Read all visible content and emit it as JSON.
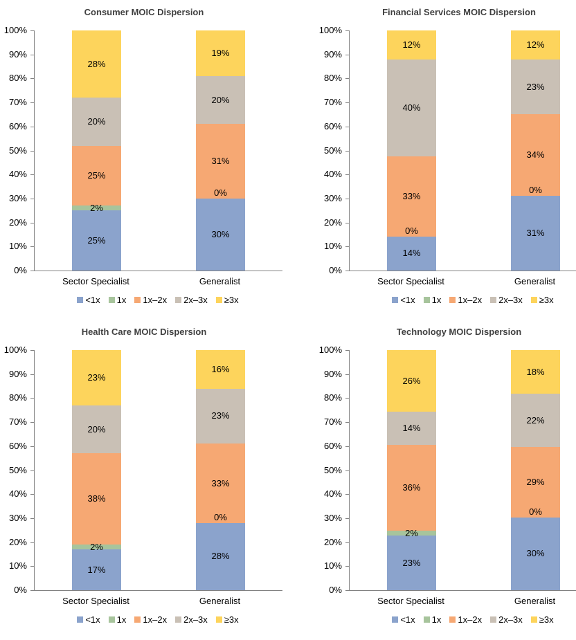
{
  "y_axis": {
    "ticks": [
      "100%",
      "90%",
      "80%",
      "70%",
      "60%",
      "50%",
      "40%",
      "30%",
      "20%",
      "10%",
      "0%"
    ],
    "range": [
      0,
      100
    ],
    "step": 10
  },
  "legend": {
    "position": "bottom",
    "entries": [
      {
        "label": "<1x",
        "color": "#8BA3CC"
      },
      {
        "label": "1x",
        "color": "#A7C49C"
      },
      {
        "label": "1x–2x",
        "color": "#F6A873"
      },
      {
        "label": "2x–3x",
        "color": "#C9C0B5"
      },
      {
        "label": "≥3x",
        "color": "#FDD45C"
      }
    ]
  },
  "chart_data": [
    {
      "type": "bar",
      "stacked": true,
      "grid": false,
      "title": "Consumer MOIC Dispersion",
      "categories": [
        "Sector Specialist",
        "Generalist"
      ],
      "ylim": [
        0,
        100
      ],
      "series": [
        {
          "name": "<1x",
          "values": [
            25,
            30
          ]
        },
        {
          "name": "1x",
          "values": [
            2,
            0
          ]
        },
        {
          "name": "1x–2x",
          "values": [
            25,
            31
          ]
        },
        {
          "name": "2x–3x",
          "values": [
            20,
            20
          ]
        },
        {
          "name": "≥3x",
          "values": [
            28,
            19
          ]
        }
      ]
    },
    {
      "type": "bar",
      "stacked": true,
      "grid": false,
      "title": "Financial Services MOIC Dispersion",
      "categories": [
        "Sector Specialist",
        "Generalist"
      ],
      "ylim": [
        0,
        100
      ],
      "series": [
        {
          "name": "<1x",
          "values": [
            14,
            31
          ]
        },
        {
          "name": "1x",
          "values": [
            0,
            0
          ]
        },
        {
          "name": "1x–2x",
          "values": [
            33,
            34
          ]
        },
        {
          "name": "2x–3x",
          "values": [
            40,
            23
          ]
        },
        {
          "name": "≥3x",
          "values": [
            12,
            12
          ]
        }
      ]
    },
    {
      "type": "bar",
      "stacked": true,
      "grid": false,
      "title": "Health Care MOIC Dispersion",
      "categories": [
        "Sector Specialist",
        "Generalist"
      ],
      "ylim": [
        0,
        100
      ],
      "series": [
        {
          "name": "<1x",
          "values": [
            17,
            28
          ]
        },
        {
          "name": "1x",
          "values": [
            2,
            0
          ]
        },
        {
          "name": "1x–2x",
          "values": [
            38,
            33
          ]
        },
        {
          "name": "2x–3x",
          "values": [
            20,
            23
          ]
        },
        {
          "name": "≥3x",
          "values": [
            23,
            16
          ]
        }
      ]
    },
    {
      "type": "bar",
      "stacked": true,
      "grid": false,
      "title": "Technology MOIC Dispersion",
      "categories": [
        "Sector Specialist",
        "Generalist"
      ],
      "ylim": [
        0,
        100
      ],
      "series": [
        {
          "name": "<1x",
          "values": [
            23,
            30
          ]
        },
        {
          "name": "1x",
          "values": [
            2,
            0
          ]
        },
        {
          "name": "1x–2x",
          "values": [
            36,
            29
          ]
        },
        {
          "name": "2x–3x",
          "values": [
            14,
            22
          ]
        },
        {
          "name": "≥3x",
          "values": [
            26,
            18
          ]
        }
      ]
    }
  ]
}
